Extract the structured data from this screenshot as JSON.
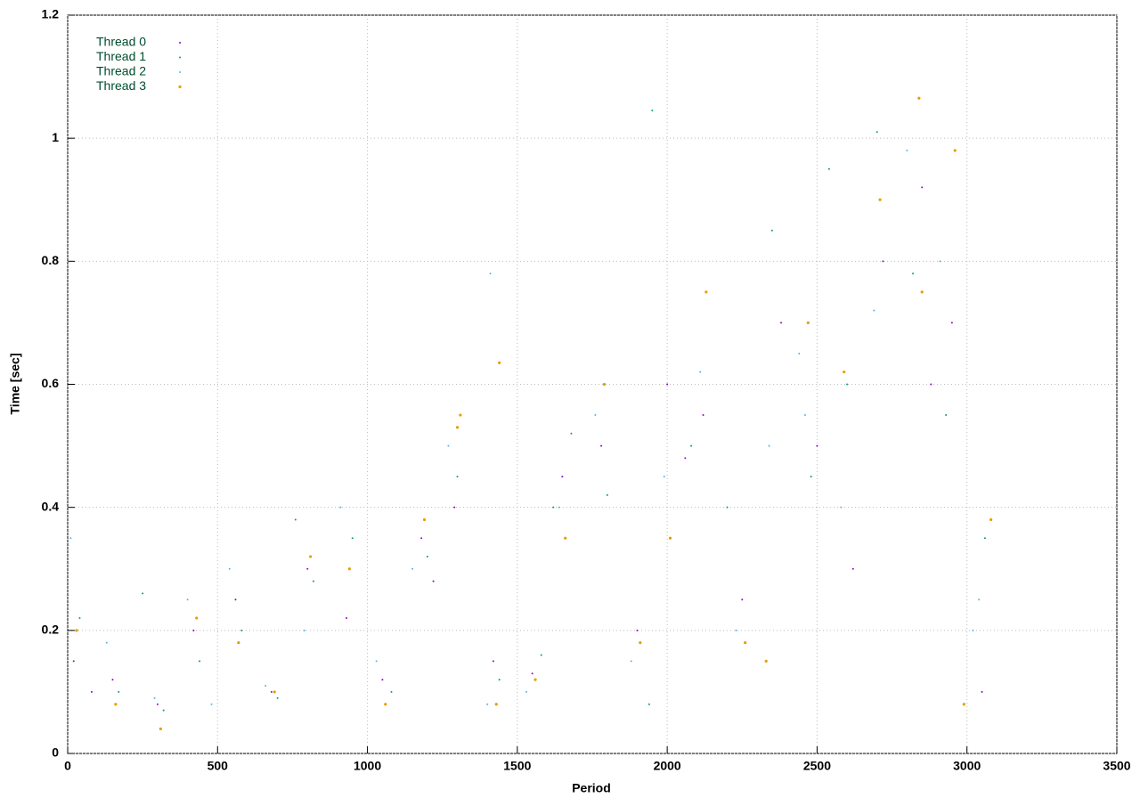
{
  "chart_data": {
    "type": "scatter",
    "xlabel": "Period",
    "ylabel": "Time [sec]",
    "xlim": [
      0,
      3500
    ],
    "ylim": [
      0,
      1.2
    ],
    "xticks": [
      0,
      500,
      1000,
      1500,
      2000,
      2500,
      3000,
      3500
    ],
    "yticks": [
      0,
      0.2,
      0.4,
      0.6,
      0.8,
      1,
      1.2
    ],
    "grid": true,
    "legend": "top-left",
    "series": [
      {
        "name": "Thread 0",
        "color": "#9400d3",
        "x": [
          20,
          150,
          300,
          420,
          560,
          680,
          800,
          930,
          1050,
          1180,
          1290,
          1420,
          1550,
          1650,
          1780,
          1900,
          2000,
          2120,
          2250,
          2380,
          2500,
          2620,
          2720,
          2850,
          2950,
          3050,
          80,
          1220,
          2060,
          2880
        ],
        "values": [
          0.15,
          0.12,
          0.08,
          0.2,
          0.25,
          0.1,
          0.3,
          0.22,
          0.12,
          0.35,
          0.4,
          0.15,
          0.13,
          0.45,
          0.5,
          0.2,
          0.6,
          0.55,
          0.25,
          0.7,
          0.5,
          0.3,
          0.8,
          0.92,
          0.7,
          0.1,
          0.1,
          0.28,
          0.48,
          0.6
        ]
      },
      {
        "name": "Thread 1",
        "color": "#009e73",
        "x": [
          40,
          170,
          320,
          440,
          580,
          700,
          820,
          950,
          1080,
          1200,
          1300,
          1440,
          1580,
          1680,
          1800,
          1940,
          1950,
          2080,
          2200,
          2350,
          2480,
          2600,
          2700,
          2820,
          2930,
          3060,
          250,
          760,
          1620,
          2540
        ],
        "values": [
          0.22,
          0.1,
          0.07,
          0.15,
          0.2,
          0.09,
          0.28,
          0.35,
          0.1,
          0.32,
          0.45,
          0.12,
          0.16,
          0.52,
          0.42,
          0.08,
          1.045,
          0.5,
          0.4,
          0.85,
          0.45,
          0.6,
          1.01,
          0.78,
          0.55,
          0.35,
          0.26,
          0.38,
          0.4,
          0.95
        ]
      },
      {
        "name": "Thread 2",
        "color": "#56b4e9",
        "x": [
          10,
          130,
          290,
          400,
          540,
          660,
          790,
          910,
          1030,
          1150,
          1270,
          1400,
          1530,
          1640,
          1760,
          1880,
          1990,
          2110,
          2230,
          2340,
          2460,
          2580,
          2690,
          2800,
          2910,
          3040,
          1410,
          2440,
          3020,
          480
        ],
        "values": [
          0.35,
          0.18,
          0.09,
          0.25,
          0.3,
          0.11,
          0.2,
          0.4,
          0.15,
          0.3,
          0.5,
          0.08,
          0.1,
          0.4,
          0.55,
          0.15,
          0.45,
          0.62,
          0.2,
          0.5,
          0.55,
          0.4,
          0.72,
          0.98,
          0.8,
          0.25,
          0.78,
          0.65,
          0.2,
          0.08
        ]
      },
      {
        "name": "Thread 3",
        "color": "#e69f00",
        "x": [
          30,
          160,
          310,
          430,
          570,
          690,
          810,
          940,
          1060,
          1190,
          1310,
          1430,
          1560,
          1660,
          1790,
          1910,
          2010,
          2130,
          2260,
          2330,
          2470,
          2590,
          2710,
          2840,
          2960,
          3080,
          1300,
          1440,
          2850,
          2990
        ],
        "values": [
          0.2,
          0.08,
          0.04,
          0.22,
          0.18,
          0.1,
          0.32,
          0.3,
          0.08,
          0.38,
          0.55,
          0.08,
          0.12,
          0.35,
          0.6,
          0.18,
          0.35,
          0.75,
          0.18,
          0.15,
          0.7,
          0.62,
          0.9,
          1.065,
          0.98,
          0.38,
          0.53,
          0.635,
          0.75,
          0.08
        ]
      }
    ]
  }
}
